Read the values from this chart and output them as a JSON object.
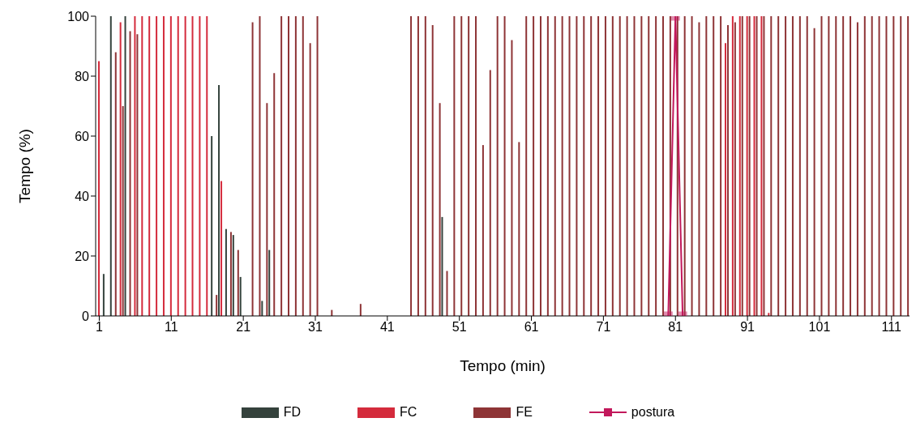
{
  "chart_data": {
    "type": "bar",
    "xlabel": "Tempo (min)",
    "ylabel": "Tempo (%)",
    "ylim": [
      0,
      100
    ],
    "yticks": [
      0,
      20,
      40,
      60,
      80,
      100
    ],
    "xlim": [
      0.5,
      113.5
    ],
    "xticks": [
      1,
      11,
      21,
      31,
      41,
      51,
      61,
      71,
      81,
      91,
      101,
      111
    ],
    "legend": "bottom",
    "marker": "square",
    "x": [
      1,
      2,
      3,
      4,
      5,
      6,
      7,
      8,
      9,
      10,
      11,
      12,
      13,
      14,
      15,
      16,
      17,
      18,
      19,
      20,
      21,
      22,
      23,
      24,
      25,
      26,
      27,
      28,
      29,
      30,
      31,
      32,
      33,
      34,
      35,
      36,
      37,
      38,
      39,
      40,
      41,
      42,
      43,
      44,
      45,
      46,
      47,
      48,
      49,
      50,
      51,
      52,
      53,
      54,
      55,
      56,
      57,
      58,
      59,
      60,
      61,
      62,
      63,
      64,
      65,
      66,
      67,
      68,
      69,
      70,
      71,
      72,
      73,
      74,
      75,
      76,
      77,
      78,
      79,
      80,
      81,
      82,
      83,
      84,
      85,
      86,
      87,
      88,
      89,
      90,
      91,
      92,
      93,
      94,
      95,
      96,
      97,
      98,
      99,
      100,
      101,
      102,
      103,
      104,
      105,
      106,
      107,
      108,
      109,
      110,
      111,
      112,
      113
    ],
    "series": [
      {
        "name": "FD",
        "color": "#34423c",
        "values": [
          null,
          14,
          100,
          null,
          100,
          null,
          null,
          null,
          null,
          null,
          null,
          null,
          null,
          null,
          null,
          null,
          60,
          77,
          29,
          27,
          13,
          null,
          null,
          5,
          22,
          null,
          null,
          null,
          null,
          null,
          null,
          null,
          null,
          null,
          null,
          null,
          null,
          null,
          null,
          null,
          null,
          null,
          null,
          null,
          null,
          null,
          null,
          null,
          33,
          null,
          null,
          null,
          null,
          null,
          null,
          null,
          null,
          null,
          null,
          null,
          null,
          null,
          null,
          null,
          null,
          null,
          null,
          null,
          null,
          null,
          null,
          null,
          null,
          null,
          null,
          null,
          null,
          null,
          null,
          null,
          null,
          null,
          null,
          null,
          null,
          null,
          null,
          null,
          null,
          null,
          null,
          null,
          null,
          null,
          null,
          null,
          null,
          null,
          null,
          null,
          null,
          null,
          null,
          null,
          null,
          null,
          null,
          null,
          null,
          null,
          null,
          null,
          null
        ]
      },
      {
        "name": "FC",
        "color": "#d42b3c",
        "values": [
          85,
          null,
          null,
          98,
          null,
          100,
          100,
          100,
          100,
          100,
          100,
          100,
          100,
          100,
          100,
          100,
          null,
          45,
          null,
          null,
          null,
          null,
          null,
          null,
          null,
          null,
          null,
          null,
          null,
          null,
          null,
          null,
          null,
          null,
          null,
          null,
          null,
          null,
          null,
          null,
          null,
          null,
          null,
          null,
          null,
          null,
          null,
          null,
          null,
          null,
          null,
          null,
          null,
          null,
          null,
          null,
          null,
          null,
          null,
          null,
          null,
          null,
          null,
          null,
          null,
          null,
          null,
          null,
          null,
          null,
          null,
          null,
          null,
          null,
          null,
          null,
          null,
          null,
          null,
          null,
          null,
          null,
          null,
          null,
          null,
          null,
          null,
          91,
          100,
          100,
          100,
          100,
          100,
          1,
          null,
          null,
          null,
          null,
          null,
          null,
          null,
          null,
          null,
          null,
          null,
          null,
          null,
          null,
          null,
          null,
          null,
          null,
          null
        ]
      },
      {
        "name": "FE",
        "color": "#8e3436",
        "values": [
          null,
          null,
          88,
          70,
          95,
          94,
          null,
          null,
          null,
          null,
          null,
          null,
          null,
          null,
          null,
          null,
          7,
          null,
          28,
          22,
          null,
          98,
          100,
          71,
          81,
          100,
          100,
          100,
          100,
          91,
          100,
          0,
          2,
          0,
          0,
          0,
          4,
          0,
          0,
          0,
          0,
          0,
          0,
          100,
          100,
          100,
          97,
          71,
          15,
          100,
          100,
          100,
          100,
          57,
          82,
          100,
          100,
          92,
          58,
          100,
          100,
          100,
          100,
          100,
          100,
          100,
          100,
          100,
          100,
          100,
          100,
          100,
          100,
          100,
          100,
          100,
          100,
          100,
          100,
          100,
          100,
          100,
          100,
          98,
          100,
          100,
          100,
          97,
          98,
          100,
          100,
          100,
          100,
          100,
          100,
          100,
          100,
          100,
          100,
          96,
          100,
          100,
          100,
          100,
          100,
          98,
          100,
          100,
          100,
          100,
          100,
          100,
          100
        ]
      },
      {
        "name": "postura",
        "type": "line",
        "color": "#c2185b",
        "values": [
          null,
          null,
          null,
          null,
          null,
          null,
          null,
          null,
          null,
          null,
          null,
          null,
          null,
          null,
          null,
          null,
          null,
          null,
          null,
          null,
          null,
          null,
          null,
          null,
          null,
          null,
          null,
          null,
          null,
          null,
          null,
          null,
          null,
          null,
          null,
          null,
          null,
          null,
          null,
          null,
          null,
          null,
          null,
          null,
          null,
          null,
          null,
          null,
          null,
          null,
          null,
          null,
          null,
          null,
          null,
          null,
          null,
          null,
          null,
          null,
          null,
          null,
          null,
          null,
          null,
          null,
          null,
          null,
          null,
          null,
          null,
          null,
          null,
          null,
          null,
          null,
          null,
          null,
          null,
          0,
          100,
          0,
          null,
          null,
          null,
          null,
          null,
          null,
          null,
          null,
          null,
          null,
          null,
          null,
          null,
          null,
          null,
          null,
          null,
          null,
          null,
          null,
          null,
          null,
          null,
          null,
          null,
          null,
          null,
          null,
          null,
          null,
          null
        ]
      }
    ]
  }
}
